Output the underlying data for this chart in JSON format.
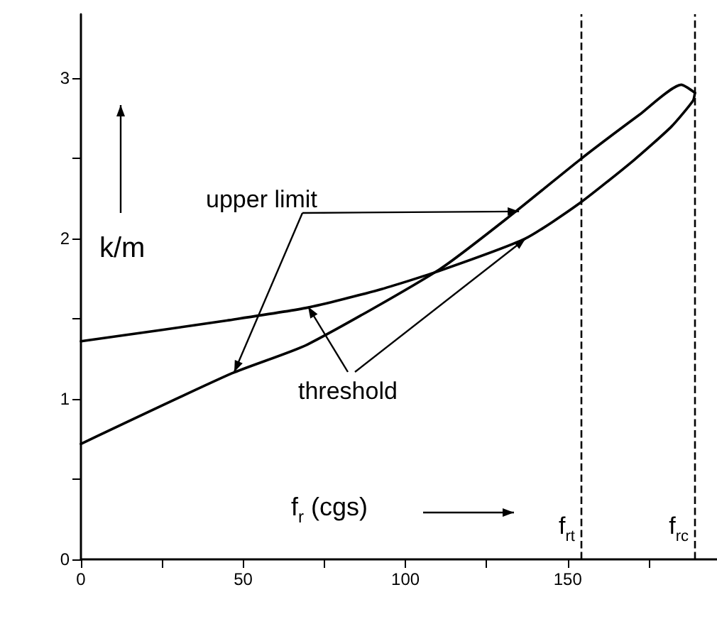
{
  "chart_data": {
    "type": "line",
    "xlabel": "f$_{r}$ (cgs)",
    "ylabel": "k/m",
    "annotations": [
      {
        "text": "upper limit",
        "x": 135,
        "y": 2.17
      },
      {
        "text": "threshold",
        "x": 137,
        "y": 2.0
      }
    ],
    "xlim": [
      0,
      196
    ],
    "ylim": [
      0,
      3.4
    ],
    "xticks": [
      0,
      {
        "value": 25,
        "label": null
      },
      50,
      {
        "value": 75,
        "label": null
      },
      100,
      {
        "value": 125,
        "label": null
      },
      150,
      {
        "value": 175,
        "label": null
      }
    ],
    "yticks": [
      0,
      {
        "value": 0.5,
        "label": null
      },
      1,
      {
        "value": 1.5,
        "label": null
      },
      2,
      {
        "value": 2.5,
        "label": null
      },
      3
    ],
    "series": [
      {
        "color": "#000000",
        "x": [
          0,
          46.5,
          69.8,
          110.6,
          134,
          153.6,
          171.9,
          185,
          189.2
        ],
        "values": [
          0.72,
          1.16,
          1.34,
          1.81,
          2.17,
          2.49,
          2.77,
          2.96,
          2.91
        ]
      },
      {
        "color": "#000000",
        "x": [
          0,
          24.6,
          45,
          69.8,
          91.7,
          110.6,
          136.9,
          153.6,
          170.4,
          182,
          188.6,
          189.2
        ],
        "values": [
          1.36,
          1.43,
          1.49,
          1.57,
          1.68,
          1.8,
          2.0,
          2.22,
          2.49,
          2.7,
          2.86,
          2.91
        ]
      }
    ],
    "ref_lines": [
      {
        "axis": "x",
        "value": 154,
        "label": "f$_{rt}$",
        "line_style": "dashed"
      },
      {
        "axis": "x",
        "value": 189,
        "label": "f$_{rc}$",
        "line_style": "dashed"
      }
    ],
    "grid": false,
    "marker": "none",
    "line_style": "solid"
  }
}
